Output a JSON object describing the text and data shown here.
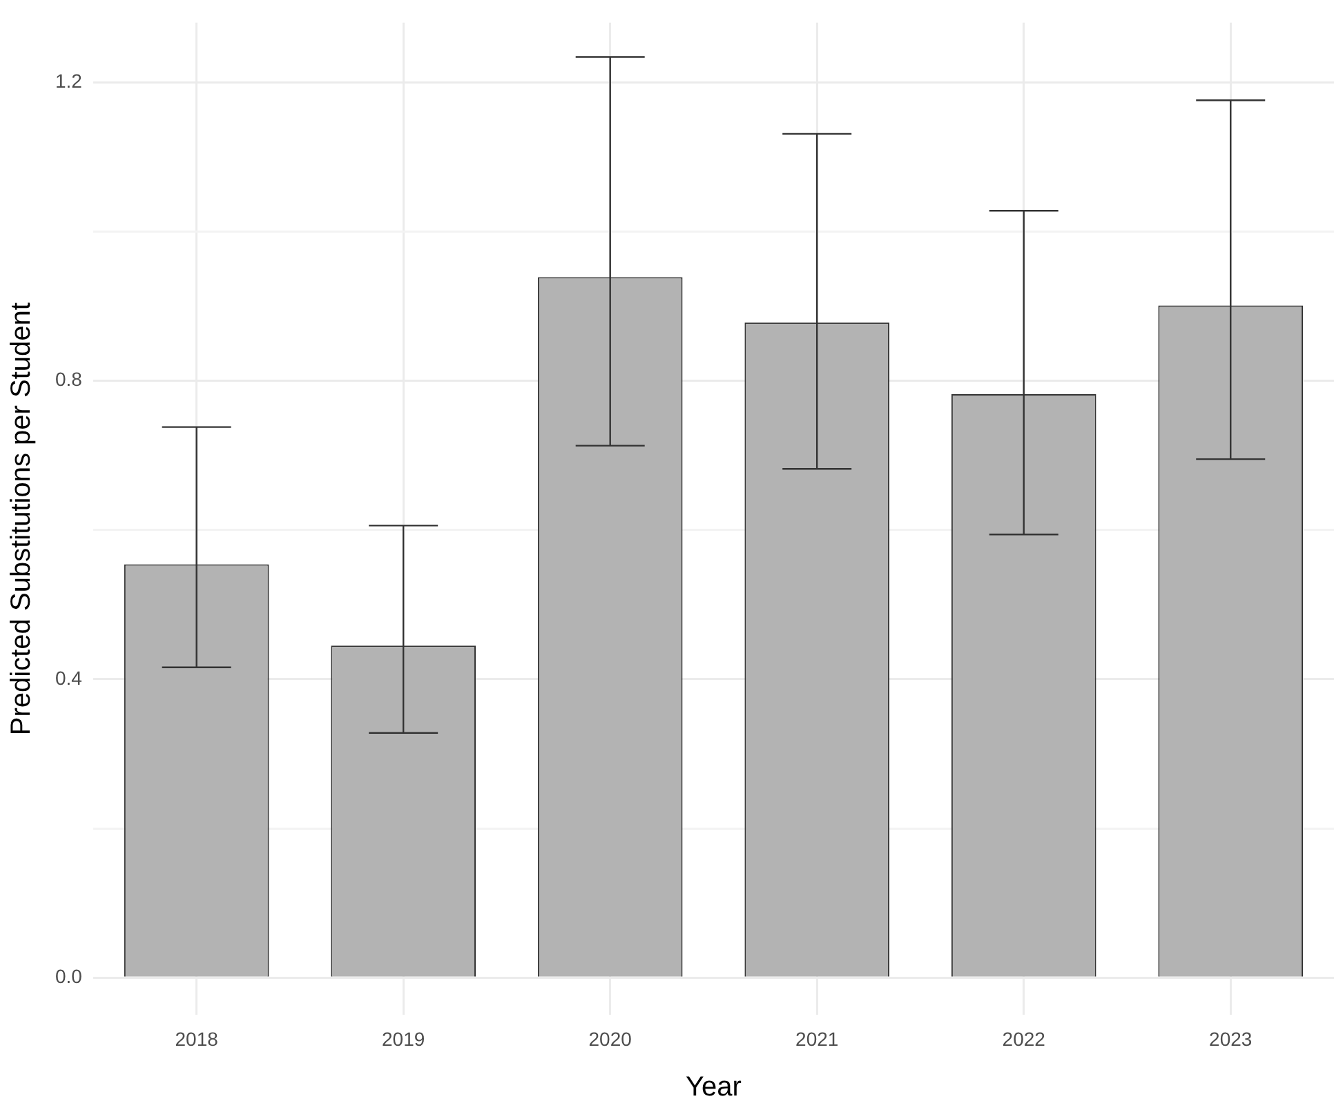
{
  "chart_data": {
    "type": "bar",
    "xlabel": "Year",
    "ylabel": "Predicted Substitutions per Student",
    "categories": [
      "2018",
      "2019",
      "2020",
      "2021",
      "2022",
      "2023"
    ],
    "values": [
      0.554,
      0.445,
      0.939,
      0.878,
      0.782,
      0.901
    ],
    "errors": [
      [
        0.416,
        0.738
      ],
      [
        0.328,
        0.606
      ],
      [
        0.713,
        1.234
      ],
      [
        0.682,
        1.131
      ],
      [
        0.594,
        1.028
      ],
      [
        0.695,
        1.176
      ]
    ],
    "color": "#b3b3b3",
    "ylim": [
      -0.05,
      1.28
    ],
    "yticks": [
      {
        "value": 0,
        "label": "0.0"
      },
      {
        "value": 0.2,
        "label": null
      },
      0.4,
      {
        "value": 0.6,
        "label": null
      },
      0.8,
      {
        "value": 1.0,
        "label": null
      },
      1.2
    ],
    "grid": true
  }
}
